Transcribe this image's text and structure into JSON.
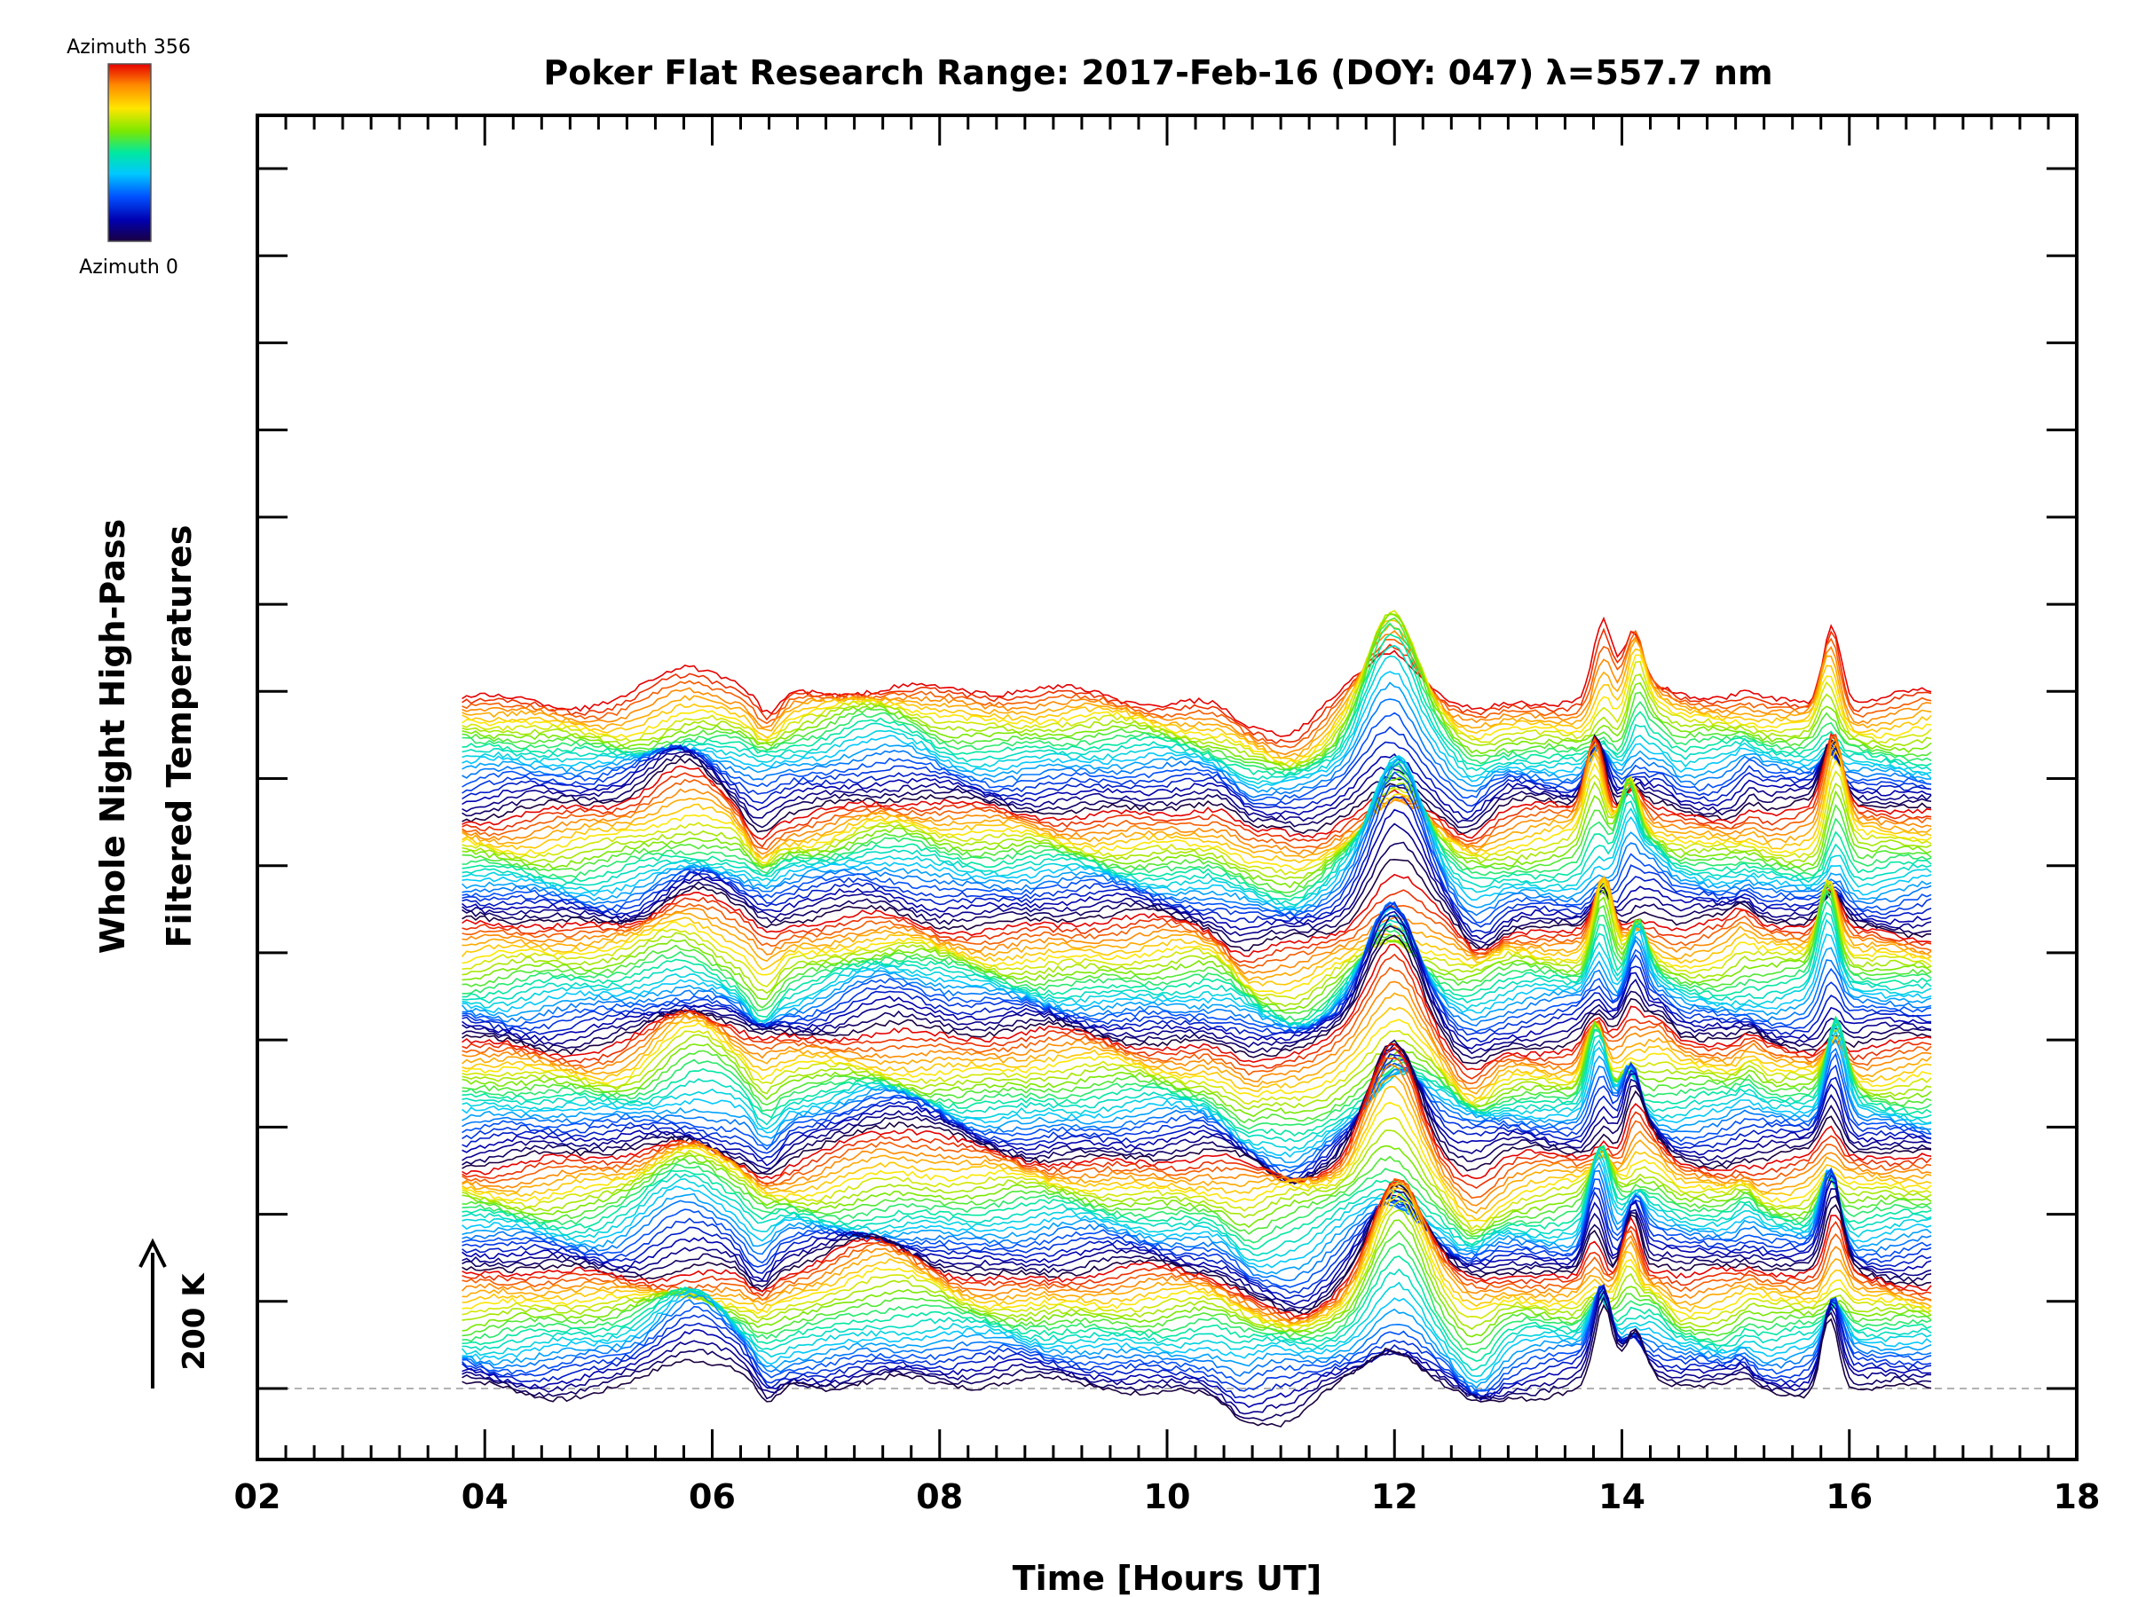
{
  "chart_data": {
    "type": "line",
    "title": "Poker Flat Research Range: 2017-Feb-16 (DOY: 047) λ=557.7 nm",
    "xlabel": "Time [Hours UT]",
    "ylabel_lines": [
      "Whole Night High-Pass",
      "Filtered Temperatures"
    ],
    "xlim": [
      2,
      18
    ],
    "x_ticks": [
      "02",
      "04",
      "06",
      "08",
      "10",
      "12",
      "14",
      "16",
      "18"
    ],
    "x_range": [
      3.8,
      16.75
    ],
    "grid": false,
    "colorbar": {
      "top_label": "Azimuth 356",
      "bottom_label": "Azimuth 0",
      "min": 0,
      "max": 356,
      "colormap": "rainbow"
    },
    "scale_bar": {
      "label": "200 K",
      "kelvin": 200
    },
    "series_count": 150,
    "series_offset_K": 40,
    "azimuth_cycle_length": 25,
    "baseline_dashed": true,
    "features": [
      {
        "time": 5.8,
        "amplitude_K": 42,
        "width_h": 0.3
      },
      {
        "time": 6.45,
        "amplitude_K": -22,
        "width_h": 0.1
      },
      {
        "time": 7.5,
        "amplitude_K": 28,
        "width_h": 0.4
      },
      {
        "time": 9.0,
        "amplitude_K": 6,
        "width_h": 0.8
      },
      {
        "time": 10.7,
        "amplitude_K": -18,
        "width_h": 0.15
      },
      {
        "time": 11.1,
        "amplitude_K": -35,
        "width_h": 0.25
      },
      {
        "time": 12.0,
        "amplitude_K": 110,
        "width_h": 0.22
      },
      {
        "time": 12.7,
        "amplitude_K": -25,
        "width_h": 0.15
      },
      {
        "time": 13.8,
        "amplitude_K": 72,
        "width_h": 0.08
      },
      {
        "time": 14.1,
        "amplitude_K": 62,
        "width_h": 0.08
      },
      {
        "time": 14.3,
        "amplitude_K": 20,
        "width_h": 0.1
      },
      {
        "time": 15.1,
        "amplitude_K": 12,
        "width_h": 0.08
      },
      {
        "time": 15.85,
        "amplitude_K": 75,
        "width_h": 0.08
      }
    ],
    "colors": {
      "rainbow": [
        "#1a0040",
        "#0000b0",
        "#0050ff",
        "#00c8ff",
        "#00e8a0",
        "#7ae800",
        "#ffe600",
        "#ff8a00",
        "#e60000"
      ],
      "baseline": "#999999",
      "axis": "#000000"
    }
  }
}
